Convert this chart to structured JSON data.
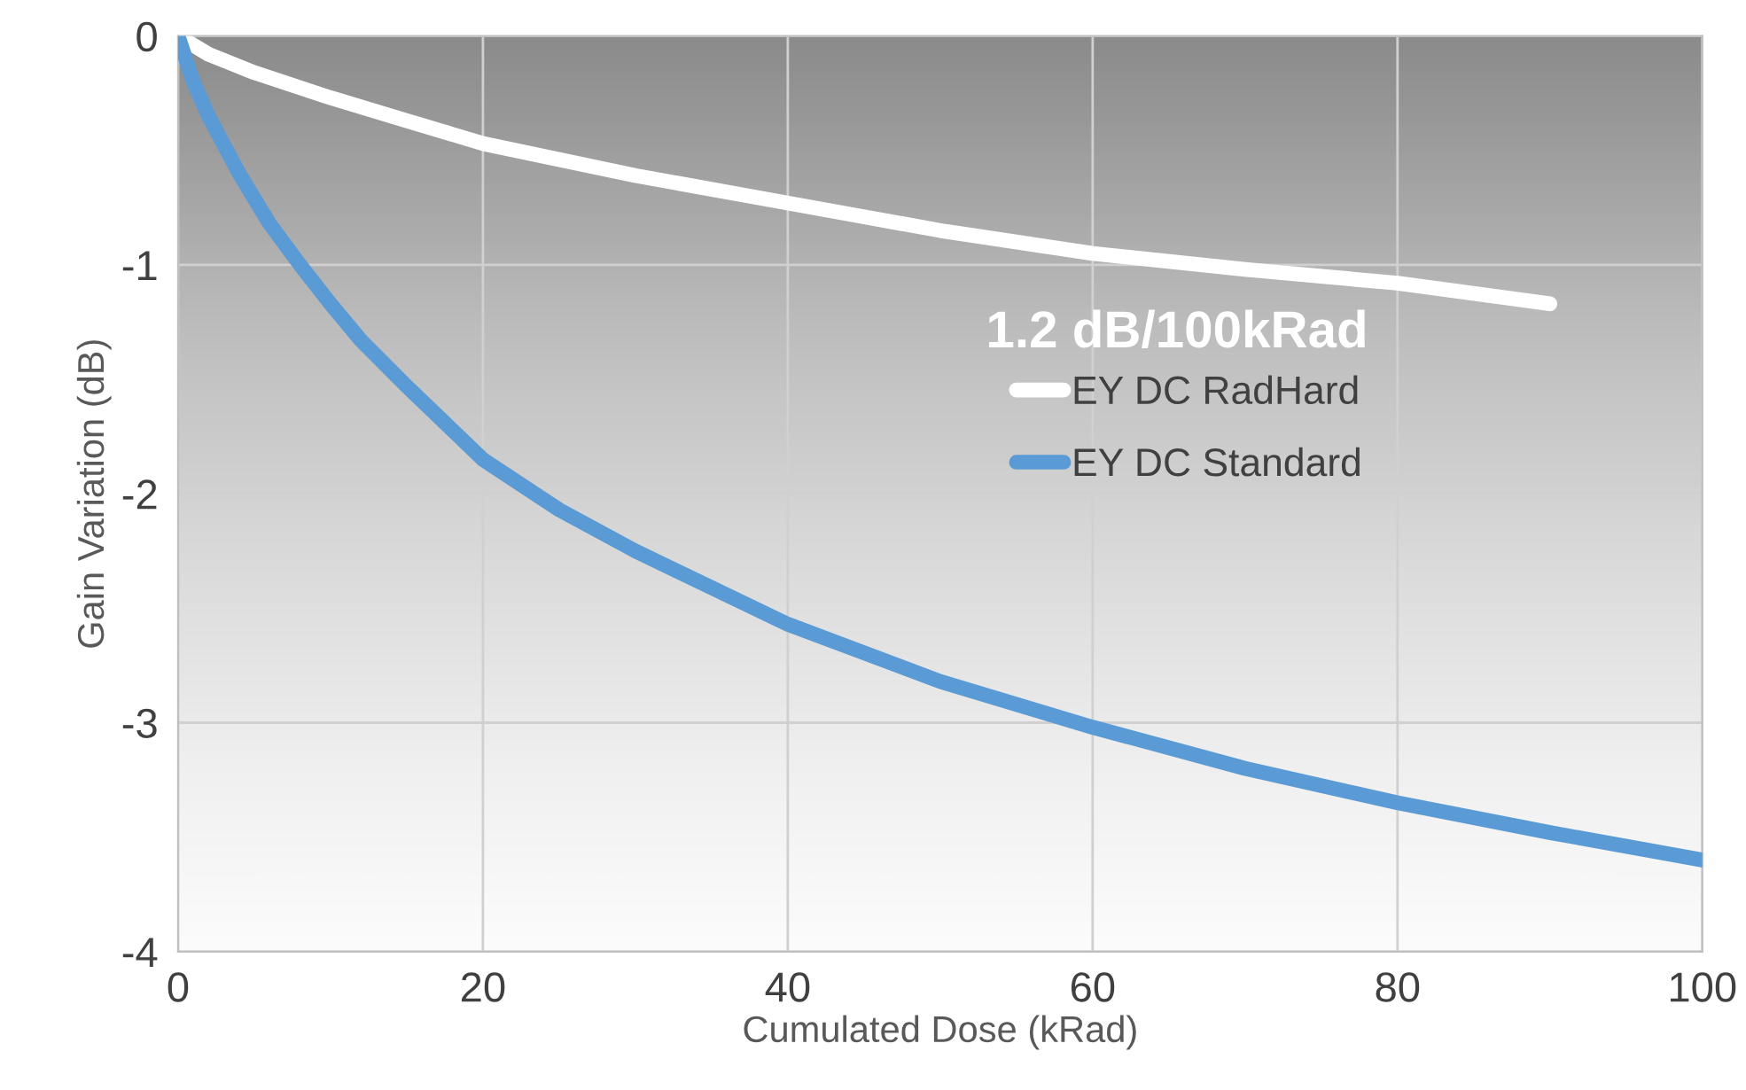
{
  "chart_data": {
    "type": "line",
    "xlabel": "Cumulated Dose (kRad)",
    "ylabel": "Gain Variation (dB)",
    "xlim": [
      0,
      100
    ],
    "ylim": [
      -4,
      0
    ],
    "xticks": [
      0,
      20,
      40,
      60,
      80,
      100
    ],
    "yticks": [
      -4,
      -3,
      -2,
      -1,
      0
    ],
    "grid": true,
    "legend": "right",
    "marker": "none",
    "line_style": "solid",
    "annotations": [
      "1.2 dB/100kRad"
    ],
    "series": [
      {
        "name": "EY DC RadHard",
        "color": "#ffffff",
        "x": [
          0,
          2,
          5,
          10,
          15,
          20,
          30,
          40,
          50,
          60,
          70,
          80,
          90
        ],
        "values": [
          0,
          -0.08,
          -0.16,
          -0.27,
          -0.37,
          -0.47,
          -0.61,
          -0.73,
          -0.85,
          -0.95,
          -1.02,
          -1.08,
          -1.17
        ]
      },
      {
        "name": "EY DC Standard",
        "color": "#5b9bd5",
        "x": [
          0,
          1,
          2,
          4,
          6,
          8,
          10,
          12,
          15,
          20,
          25,
          30,
          40,
          50,
          60,
          70,
          80,
          90,
          100
        ],
        "values": [
          0,
          -0.2,
          -0.35,
          -0.6,
          -0.82,
          -1.0,
          -1.17,
          -1.33,
          -1.53,
          -1.85,
          -2.07,
          -2.25,
          -2.57,
          -2.82,
          -3.02,
          -3.2,
          -3.35,
          -3.48,
          -3.6
        ]
      }
    ]
  }
}
